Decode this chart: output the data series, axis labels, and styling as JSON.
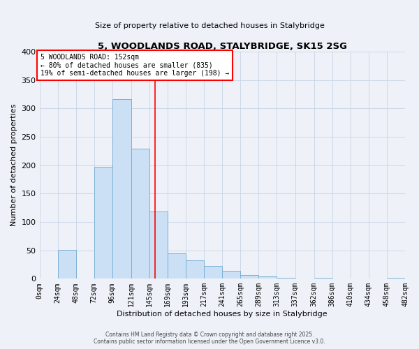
{
  "title": "5, WOODLANDS ROAD, STALYBRIDGE, SK15 2SG",
  "subtitle": "Size of property relative to detached houses in Stalybridge",
  "xlabel": "Distribution of detached houses by size in Stalybridge",
  "ylabel": "Number of detached properties",
  "bar_color": "#cce0f5",
  "bar_edge_color": "#7ab0d4",
  "bin_edges": [
    0,
    24,
    48,
    72,
    96,
    121,
    145,
    169,
    193,
    217,
    241,
    265,
    289,
    313,
    337,
    362,
    386,
    410,
    434,
    458,
    482
  ],
  "bin_labels": [
    "0sqm",
    "24sqm",
    "48sqm",
    "72sqm",
    "96sqm",
    "121sqm",
    "145sqm",
    "169sqm",
    "193sqm",
    "217sqm",
    "241sqm",
    "265sqm",
    "289sqm",
    "313sqm",
    "337sqm",
    "362sqm",
    "386sqm",
    "410sqm",
    "434sqm",
    "458sqm",
    "482sqm"
  ],
  "counts": [
    0,
    51,
    0,
    197,
    317,
    229,
    118,
    45,
    33,
    22,
    14,
    7,
    4,
    2,
    0,
    2,
    0,
    0,
    0,
    2
  ],
  "property_line_x": 152,
  "annotation_title": "5 WOODLANDS ROAD: 152sqm",
  "annotation_line1": "← 80% of detached houses are smaller (835)",
  "annotation_line2": "19% of semi-detached houses are larger (198) →",
  "ylim": [
    0,
    400
  ],
  "yticks": [
    0,
    50,
    100,
    150,
    200,
    250,
    300,
    350,
    400
  ],
  "footer1": "Contains HM Land Registry data © Crown copyright and database right 2025.",
  "footer2": "Contains public sector information licensed under the Open Government Licence v3.0.",
  "bg_color": "#eef2f8",
  "grid_color": "#c8d4e4"
}
